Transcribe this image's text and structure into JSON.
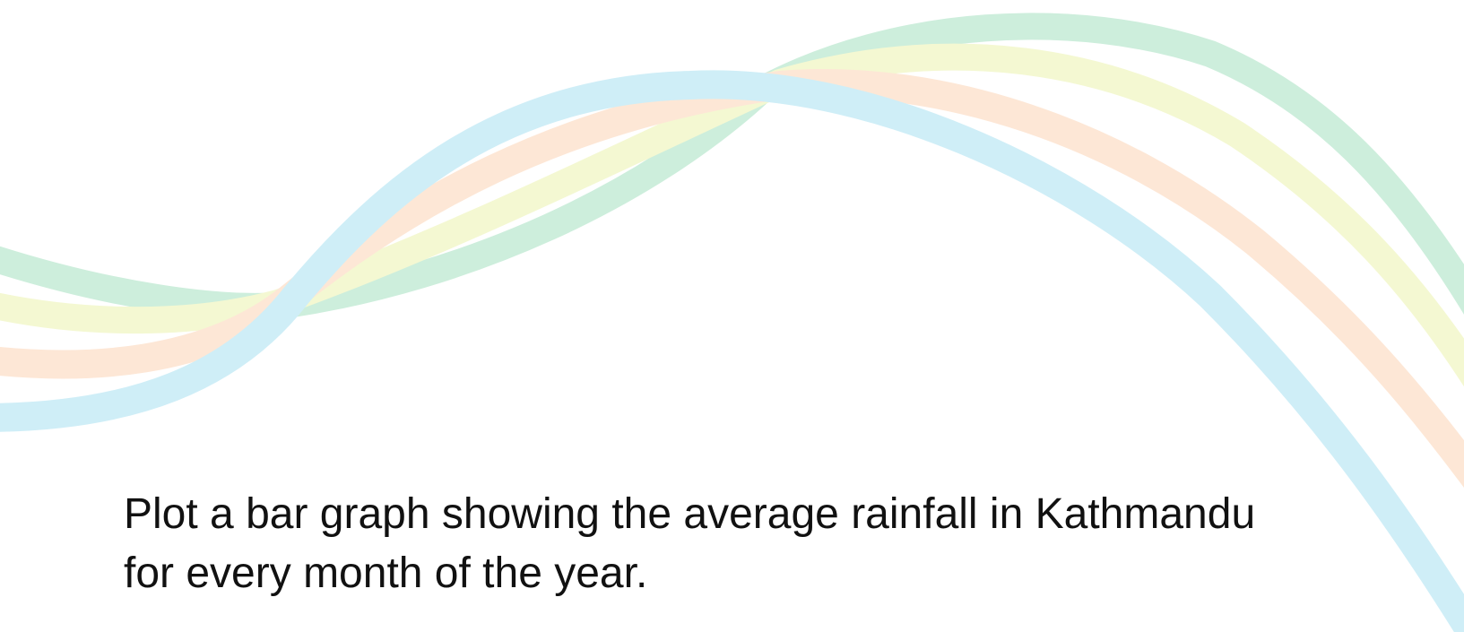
{
  "slide": {
    "text": "Plot a bar graph showing the average rainfall in Kathmandu\nfor every month of the year."
  },
  "decoration": {
    "ribbon_colors": {
      "green": "#cdeedc",
      "yellow": "#f4f8d2",
      "orange": "#fde7d6",
      "blue": "#cfeef7"
    }
  }
}
